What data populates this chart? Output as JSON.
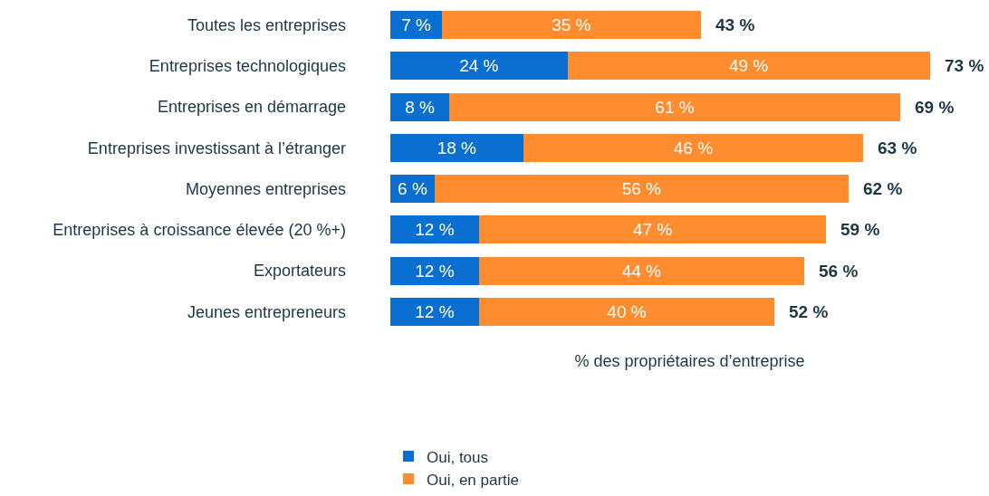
{
  "chart_data": {
    "type": "bar",
    "orientation": "horizontal",
    "stacked": true,
    "xlabel": "% des propriétaires d’entreprise",
    "legend": "bottom",
    "categories": [
      "Toutes les entreprises",
      "Entreprises technologiques",
      "Entreprises en démarrage",
      "Entreprises investissant à l’étranger",
      "Moyennes entreprises",
      "Entreprises à croissance élevée (20 %+)",
      "Exportateurs",
      "Jeunes entrepreneurs"
    ],
    "series": [
      {
        "name": "Oui, tous",
        "color": "#0a6fd1",
        "values": [
          7,
          24,
          8,
          18,
          6,
          12,
          12,
          12
        ],
        "value_labels": [
          "7 %",
          "24 %",
          "8 %",
          "18 %",
          "6 %",
          "12 %",
          "12 %",
          "12 %"
        ]
      },
      {
        "name": "Oui, en partie",
        "color": "#ff8c2e",
        "values": [
          35,
          49,
          61,
          46,
          56,
          47,
          44,
          40
        ],
        "value_labels": [
          "35 %",
          "49 %",
          "61 %",
          "46 %",
          "56 %",
          "47 %",
          "44 %",
          "40 %"
        ]
      }
    ],
    "totals": [
      "43 %",
      "73 %",
      "69 %",
      "63 %",
      "62 %",
      "59 %",
      "56 %",
      "52 %"
    ]
  }
}
